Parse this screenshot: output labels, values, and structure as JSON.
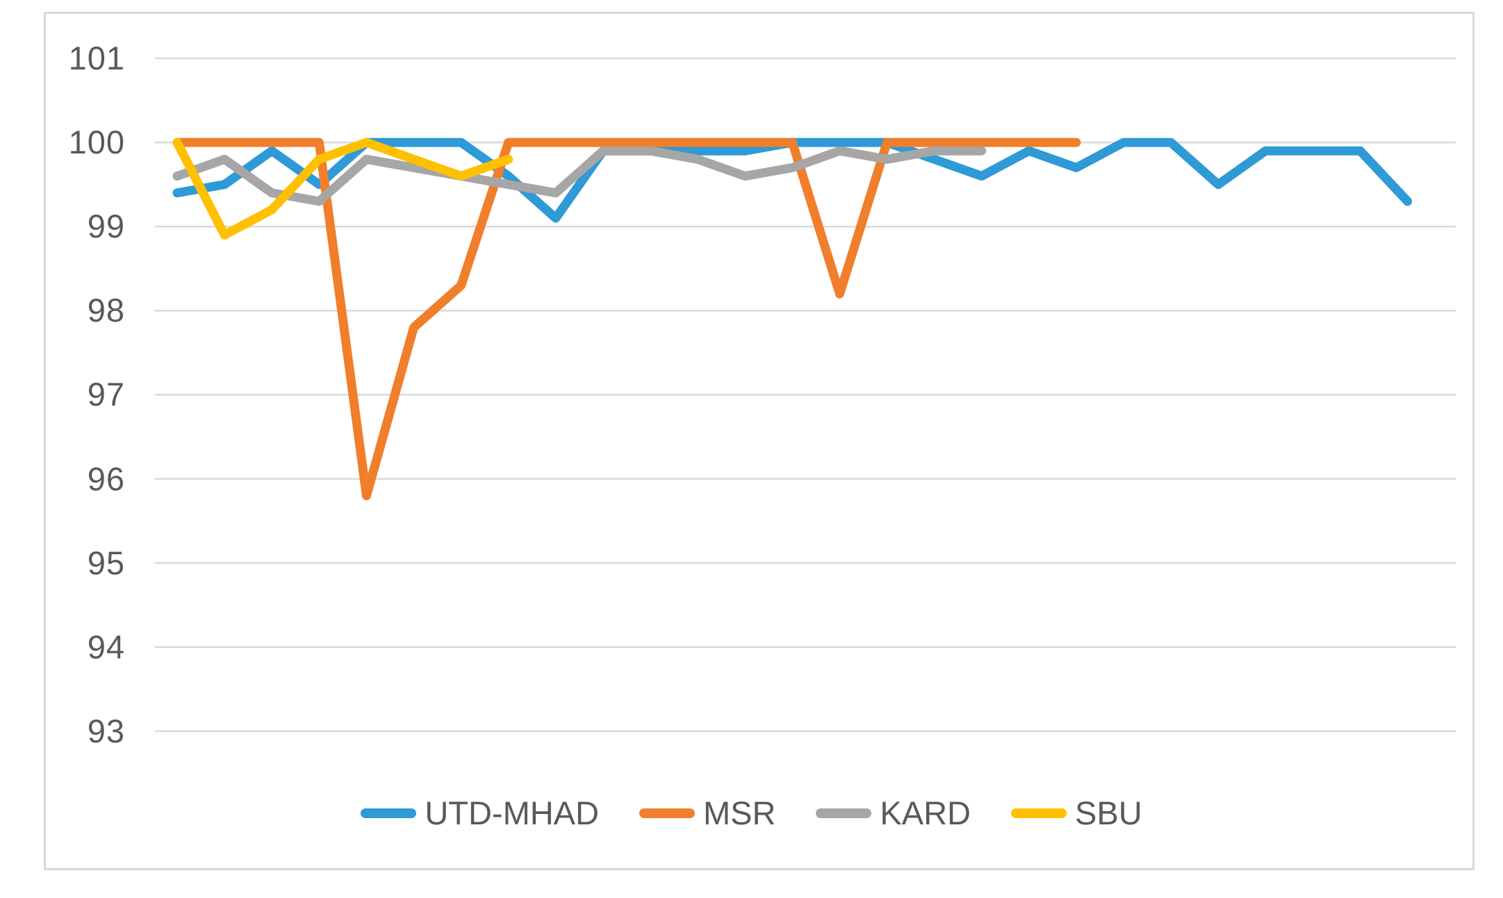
{
  "chart_data": {
    "type": "line",
    "title": "",
    "xlabel": "",
    "ylabel": "",
    "x_labels_visible": false,
    "num_points": 27,
    "y_ticks": [
      101,
      100,
      99,
      98,
      97,
      96,
      95,
      94,
      93
    ],
    "ylim_rendered": [
      93,
      101
    ],
    "grid": true,
    "legend_position": "bottom",
    "series": [
      {
        "name": "UTD-MHAD",
        "color": "#2E9AD6",
        "values": [
          99.4,
          99.5,
          99.9,
          99.5,
          100,
          100,
          100,
          99.6,
          99.1,
          99.9,
          99.9,
          99.9,
          99.9,
          100,
          100,
          100,
          99.8,
          99.6,
          99.9,
          99.7,
          100,
          100,
          99.5,
          99.9,
          99.9,
          99.9,
          99.3
        ]
      },
      {
        "name": "MSR",
        "color": "#F07E2B",
        "values": [
          100,
          100,
          100,
          100,
          95.8,
          97.8,
          98.3,
          100,
          100,
          100,
          100,
          100,
          100,
          100,
          98.2,
          100,
          100,
          100,
          100,
          100
        ]
      },
      {
        "name": "KARD",
        "color": "#A6A6A6",
        "values": [
          99.6,
          99.8,
          99.4,
          99.3,
          99.8,
          99.7,
          99.6,
          99.5,
          99.4,
          99.9,
          99.9,
          99.8,
          99.6,
          99.7,
          99.9,
          99.8,
          99.9,
          99.9
        ]
      },
      {
        "name": "SBU",
        "color": "#FFC000",
        "values": [
          100,
          98.9,
          99.2,
          99.8,
          100,
          99.8,
          99.6,
          99.8
        ]
      }
    ]
  },
  "colors": {
    "gridline": "#D9D9D9",
    "frame_border": "#D9D9D9",
    "tick_text": "#595959",
    "background": "#FFFFFF"
  }
}
